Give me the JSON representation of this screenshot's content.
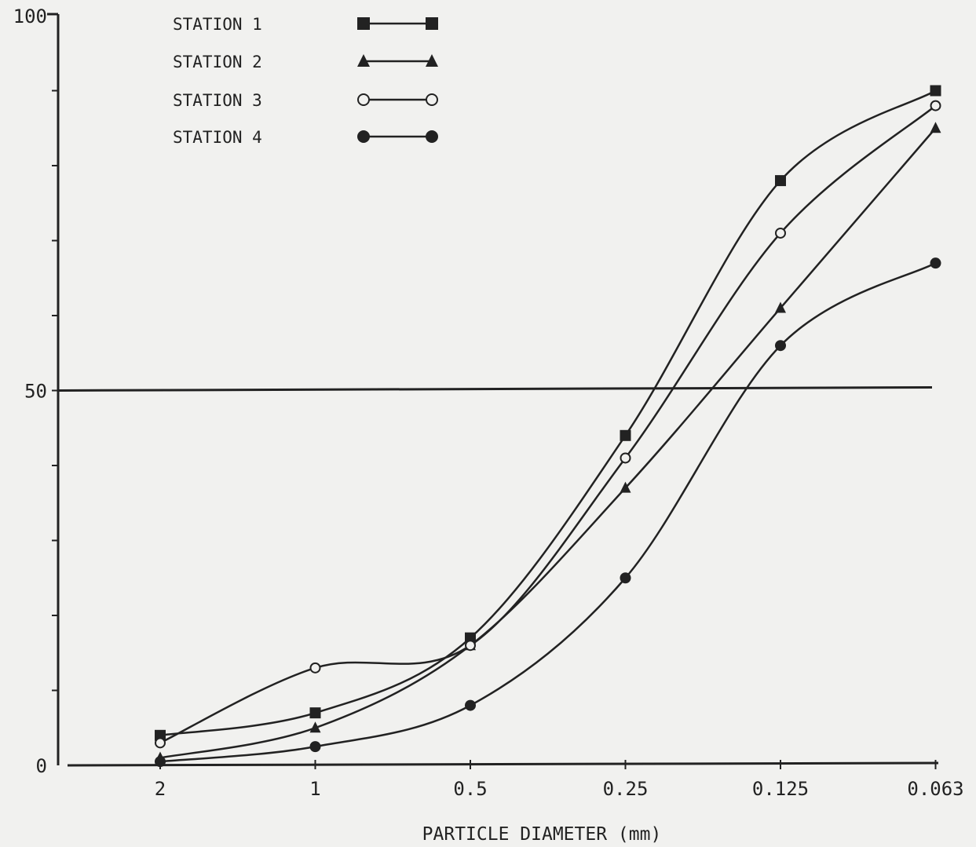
{
  "chart_data": {
    "type": "line",
    "title": "",
    "xlabel": "PARTICLE DIAMETER (mm)",
    "ylabel": "",
    "categories": [
      "2",
      "1",
      "0.5",
      "0.25",
      "0.125",
      "0.063"
    ],
    "y_ticks": [
      "0",
      "50",
      "100"
    ],
    "ylim": [
      0,
      100
    ],
    "reference_line": 50,
    "legend_position": "top-left",
    "series": [
      {
        "name": "STATION 1",
        "marker": "square",
        "values": [
          4,
          7,
          17,
          44,
          78,
          90
        ]
      },
      {
        "name": "STATION 2",
        "marker": "triangle",
        "values": [
          1,
          5,
          16,
          37,
          61,
          85
        ]
      },
      {
        "name": "STATION 3",
        "marker": "open-circle",
        "values": [
          3,
          13,
          16,
          41,
          71,
          88
        ]
      },
      {
        "name": "STATION 4",
        "marker": "filled-circle",
        "values": [
          0.5,
          2.5,
          8,
          25,
          56,
          67
        ]
      }
    ]
  }
}
